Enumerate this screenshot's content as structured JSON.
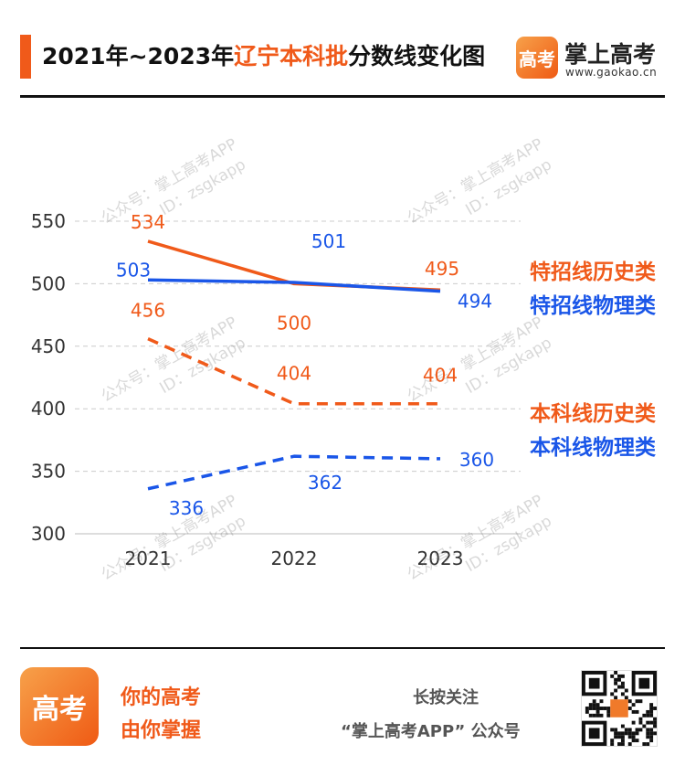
{
  "header": {
    "title_prefix": "2021年~2023年",
    "title_highlight": "辽宁本科批",
    "title_suffix": "分数线变化图",
    "brand_logo_text": "高考",
    "brand_name": "掌上高考",
    "brand_domain": "www.gaokao.cn"
  },
  "chart_data": {
    "type": "line",
    "x": [
      "2021",
      "2022",
      "2023"
    ],
    "y_ticks": [
      300,
      350,
      400,
      450,
      500,
      550
    ],
    "ylim": [
      300,
      550
    ],
    "grid": true,
    "series": [
      {
        "name": "特招线历史类",
        "values": [
          534,
          500,
          495
        ],
        "color": "#f05a1a",
        "dash": false,
        "label_color": "#f05a1a"
      },
      {
        "name": "特招线物理类",
        "values": [
          503,
          501,
          494
        ],
        "color": "#1a56e8",
        "dash": false,
        "label_color": "#1a56e8"
      },
      {
        "name": "本科线历史类",
        "values": [
          456,
          404,
          404
        ],
        "color": "#f05a1a",
        "dash": true,
        "label_color": "#f05a1a"
      },
      {
        "name": "本科线物理类",
        "values": [
          336,
          362,
          360
        ],
        "color": "#1a56e8",
        "dash": true,
        "label_color": "#1a56e8"
      }
    ]
  },
  "watermark": {
    "line1": "公众号：掌上高考APP",
    "line2": "ID：zsgkapp"
  },
  "footer": {
    "logo_text": "高考",
    "slogan_line1": "你的高考",
    "slogan_line2": "由你掌握",
    "follow_text": "长按关注",
    "account_text": "“掌上高考APP” 公众号"
  }
}
